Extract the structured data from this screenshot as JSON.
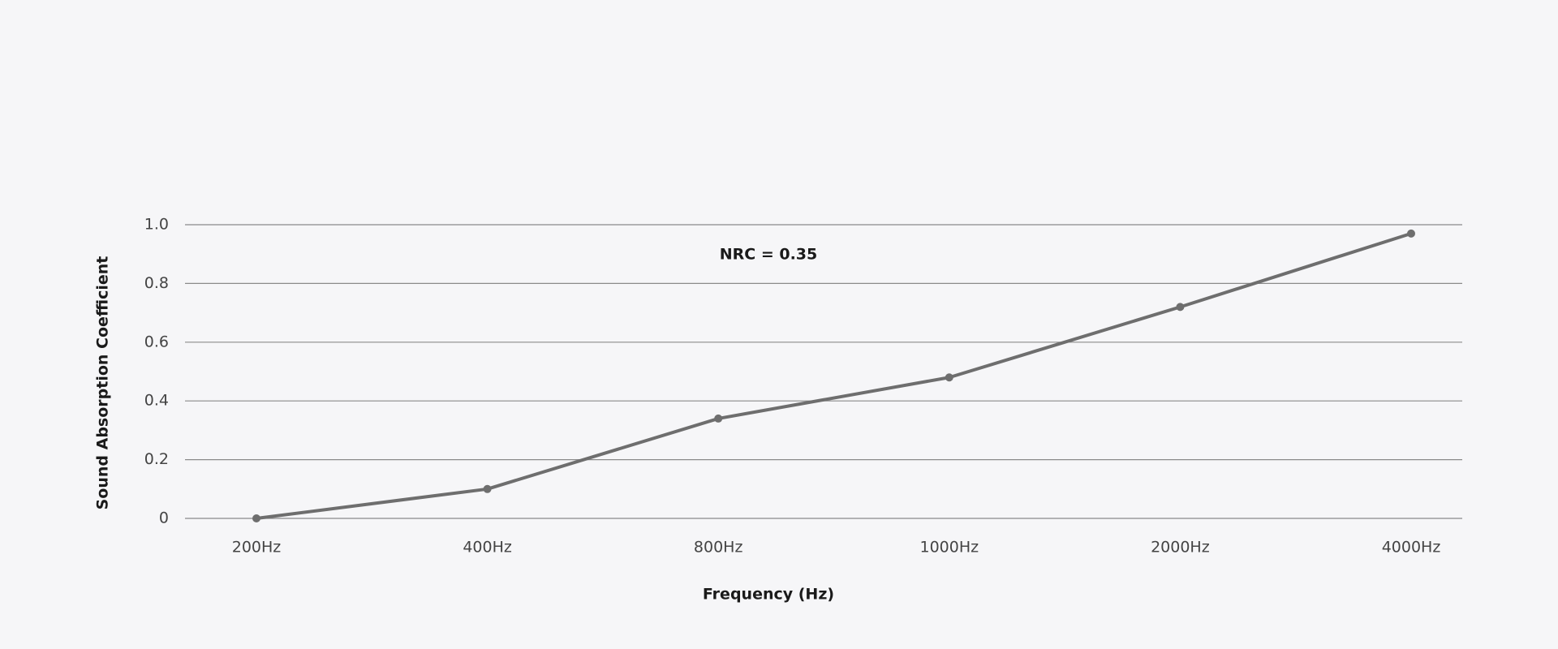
{
  "chart_data": {
    "type": "line",
    "annotation": "NRC = 0.35",
    "x_label": "Frequency (Hz)",
    "y_label": "Sound Absorption Coefficient",
    "categories": [
      "200Hz",
      "400Hz",
      "800Hz",
      "1000Hz",
      "2000Hz",
      "4000Hz"
    ],
    "values": [
      0,
      0.1,
      0.34,
      0.48,
      0.72,
      0.97
    ],
    "color": "#6e6e6e",
    "ylim": [
      0,
      1
    ],
    "yticks": [
      0,
      0.2,
      0.4,
      0.6,
      0.8,
      {
        "value": 1,
        "label": "1.0"
      }
    ],
    "grid": true
  }
}
